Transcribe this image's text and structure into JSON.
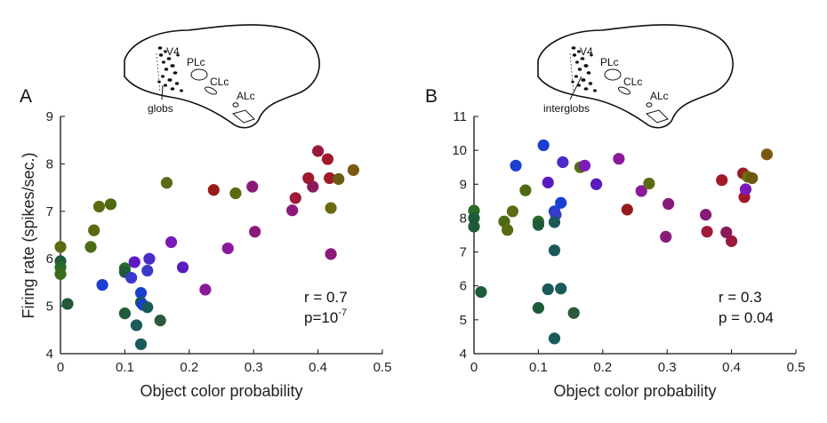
{
  "chart_data": [
    {
      "type": "scatter",
      "panel_label": "A",
      "xlabel": "Object color probability",
      "ylabel": "Firing rate (spikes/sec.)",
      "xlim": [
        0,
        0.5
      ],
      "ylim": [
        4,
        9
      ],
      "xticks": [
        "0",
        "0.1",
        "0.2",
        "0.3",
        "0.4",
        "0.5"
      ],
      "yticks": [
        "4",
        "5",
        "6",
        "7",
        "8",
        "9"
      ],
      "grid": false,
      "stats": {
        "r": "r = 0.7",
        "p_prefix": "p=10",
        "p_exp": "-7"
      },
      "brain_labels": [
        "V4",
        "PLc",
        "CLc",
        "ALc",
        "globs"
      ],
      "points": [
        {
          "x": 0.0,
          "y": 6.25,
          "color": "#5a6b14"
        },
        {
          "x": 0.0,
          "y": 5.95,
          "color": "#1f5a3a"
        },
        {
          "x": 0.0,
          "y": 5.82,
          "color": "#2a6a2a"
        },
        {
          "x": 0.0,
          "y": 5.68,
          "color": "#3a6a1a"
        },
        {
          "x": 0.011,
          "y": 5.05,
          "color": "#1f5a3a"
        },
        {
          "x": 0.047,
          "y": 6.25,
          "color": "#4e6a12"
        },
        {
          "x": 0.052,
          "y": 6.6,
          "color": "#5a6b14"
        },
        {
          "x": 0.06,
          "y": 7.1,
          "color": "#5a6b14"
        },
        {
          "x": 0.078,
          "y": 7.15,
          "color": "#4e6a12"
        },
        {
          "x": 0.065,
          "y": 5.45,
          "color": "#1a3ed0"
        },
        {
          "x": 0.1,
          "y": 5.8,
          "color": "#2a6a2a"
        },
        {
          "x": 0.1,
          "y": 5.72,
          "color": "#1f5a3a"
        },
        {
          "x": 0.1,
          "y": 4.85,
          "color": "#1f5a3a"
        },
        {
          "x": 0.11,
          "y": 5.6,
          "color": "#3a3aca"
        },
        {
          "x": 0.115,
          "y": 5.93,
          "color": "#5a1ac0"
        },
        {
          "x": 0.118,
          "y": 4.6,
          "color": "#1a5a5a"
        },
        {
          "x": 0.125,
          "y": 5.28,
          "color": "#1a3ed0"
        },
        {
          "x": 0.125,
          "y": 5.08,
          "color": "#1a5a5a"
        },
        {
          "x": 0.128,
          "y": 5.03,
          "color": "#1a3ed0"
        },
        {
          "x": 0.125,
          "y": 4.2,
          "color": "#1a5a5a"
        },
        {
          "x": 0.135,
          "y": 5.75,
          "color": "#3a3aca"
        },
        {
          "x": 0.138,
          "y": 6.0,
          "color": "#4a2ac8"
        },
        {
          "x": 0.135,
          "y": 4.98,
          "color": "#1a5a5a"
        },
        {
          "x": 0.155,
          "y": 4.7,
          "color": "#2a5a3a"
        },
        {
          "x": 0.165,
          "y": 7.6,
          "color": "#5a6b14"
        },
        {
          "x": 0.172,
          "y": 6.35,
          "color": "#7a1ab8"
        },
        {
          "x": 0.19,
          "y": 5.82,
          "color": "#5a1ac0"
        },
        {
          "x": 0.225,
          "y": 5.35,
          "color": "#8a1a9a"
        },
        {
          "x": 0.238,
          "y": 7.45,
          "color": "#9a1a1a"
        },
        {
          "x": 0.26,
          "y": 6.22,
          "color": "#8a1a9a"
        },
        {
          "x": 0.272,
          "y": 7.38,
          "color": "#5a6b14"
        },
        {
          "x": 0.298,
          "y": 7.52,
          "color": "#8a1a7a"
        },
        {
          "x": 0.302,
          "y": 6.57,
          "color": "#8a1a7a"
        },
        {
          "x": 0.36,
          "y": 7.02,
          "color": "#8a1a7a"
        },
        {
          "x": 0.365,
          "y": 7.28,
          "color": "#a01a3a"
        },
        {
          "x": 0.385,
          "y": 7.7,
          "color": "#a01a2a"
        },
        {
          "x": 0.392,
          "y": 7.52,
          "color": "#8a1a5a"
        },
        {
          "x": 0.4,
          "y": 8.27,
          "color": "#9a1a3a"
        },
        {
          "x": 0.415,
          "y": 8.1,
          "color": "#a01a2a"
        },
        {
          "x": 0.418,
          "y": 7.7,
          "color": "#a01a2a"
        },
        {
          "x": 0.42,
          "y": 7.07,
          "color": "#6a6a12"
        },
        {
          "x": 0.42,
          "y": 6.1,
          "color": "#8a1a7a"
        },
        {
          "x": 0.432,
          "y": 7.68,
          "color": "#6a5a12"
        },
        {
          "x": 0.455,
          "y": 7.87,
          "color": "#7a5a12"
        }
      ]
    },
    {
      "type": "scatter",
      "panel_label": "B",
      "xlabel": "Object color probability",
      "ylabel": "",
      "xlim": [
        0,
        0.5
      ],
      "ylim": [
        4,
        11
      ],
      "xticks": [
        "0",
        "0.1",
        "0.2",
        "0.3",
        "0.4",
        "0.5"
      ],
      "yticks": [
        "4",
        "5",
        "6",
        "7",
        "8",
        "9",
        "10",
        "11"
      ],
      "grid": false,
      "stats": {
        "r": "r = 0.3",
        "p": "p = 0.04"
      },
      "brain_labels": [
        "V4",
        "PLc",
        "CLc",
        "ALc",
        "interglobs"
      ],
      "points": [
        {
          "x": 0.0,
          "y": 8.22,
          "color": "#2a6a2a"
        },
        {
          "x": 0.0,
          "y": 8.0,
          "color": "#1f5a3a"
        },
        {
          "x": 0.0,
          "y": 7.75,
          "color": "#1f5a3a"
        },
        {
          "x": 0.011,
          "y": 5.82,
          "color": "#1f5a3a"
        },
        {
          "x": 0.047,
          "y": 7.9,
          "color": "#4e6a12"
        },
        {
          "x": 0.052,
          "y": 7.65,
          "color": "#5a6b14"
        },
        {
          "x": 0.06,
          "y": 8.2,
          "color": "#5a6b14"
        },
        {
          "x": 0.065,
          "y": 9.55,
          "color": "#1a3ed0"
        },
        {
          "x": 0.08,
          "y": 8.82,
          "color": "#4e6a12"
        },
        {
          "x": 0.1,
          "y": 7.9,
          "color": "#2a6a2a"
        },
        {
          "x": 0.1,
          "y": 7.8,
          "color": "#1f5a3a"
        },
        {
          "x": 0.1,
          "y": 5.35,
          "color": "#1f5a3a"
        },
        {
          "x": 0.108,
          "y": 10.15,
          "color": "#1a3ed0"
        },
        {
          "x": 0.115,
          "y": 9.05,
          "color": "#5a1ac0"
        },
        {
          "x": 0.115,
          "y": 5.9,
          "color": "#1a5a5a"
        },
        {
          "x": 0.125,
          "y": 8.2,
          "color": "#1a3ed0"
        },
        {
          "x": 0.127,
          "y": 8.1,
          "color": "#3a3aca"
        },
        {
          "x": 0.125,
          "y": 7.88,
          "color": "#1a5a5a"
        },
        {
          "x": 0.125,
          "y": 7.05,
          "color": "#1a5a5a"
        },
        {
          "x": 0.125,
          "y": 4.45,
          "color": "#1a5a5a"
        },
        {
          "x": 0.135,
          "y": 8.45,
          "color": "#1a3ed0"
        },
        {
          "x": 0.138,
          "y": 9.65,
          "color": "#4a2ac8"
        },
        {
          "x": 0.135,
          "y": 5.92,
          "color": "#1a5a5a"
        },
        {
          "x": 0.155,
          "y": 5.2,
          "color": "#2a5a3a"
        },
        {
          "x": 0.165,
          "y": 9.5,
          "color": "#5a6b14"
        },
        {
          "x": 0.172,
          "y": 9.55,
          "color": "#7a1ab8"
        },
        {
          "x": 0.19,
          "y": 9.0,
          "color": "#5a1ac0"
        },
        {
          "x": 0.225,
          "y": 9.75,
          "color": "#8a1a9a"
        },
        {
          "x": 0.238,
          "y": 8.25,
          "color": "#9a1a1a"
        },
        {
          "x": 0.26,
          "y": 8.8,
          "color": "#8a1a9a"
        },
        {
          "x": 0.272,
          "y": 9.02,
          "color": "#5a6b14"
        },
        {
          "x": 0.298,
          "y": 7.45,
          "color": "#8a1a7a"
        },
        {
          "x": 0.302,
          "y": 8.42,
          "color": "#8a1a7a"
        },
        {
          "x": 0.36,
          "y": 8.1,
          "color": "#8a1a7a"
        },
        {
          "x": 0.362,
          "y": 7.6,
          "color": "#a01a3a"
        },
        {
          "x": 0.385,
          "y": 9.12,
          "color": "#a01a2a"
        },
        {
          "x": 0.392,
          "y": 7.58,
          "color": "#8a1a5a"
        },
        {
          "x": 0.4,
          "y": 7.32,
          "color": "#9a1a3a"
        },
        {
          "x": 0.418,
          "y": 9.32,
          "color": "#a01a2a"
        },
        {
          "x": 0.42,
          "y": 8.62,
          "color": "#a01a2a"
        },
        {
          "x": 0.422,
          "y": 8.85,
          "color": "#7a1ab8"
        },
        {
          "x": 0.425,
          "y": 9.22,
          "color": "#6a6a12"
        },
        {
          "x": 0.432,
          "y": 9.18,
          "color": "#6a5a12"
        },
        {
          "x": 0.455,
          "y": 9.88,
          "color": "#7a5a12"
        }
      ]
    }
  ]
}
